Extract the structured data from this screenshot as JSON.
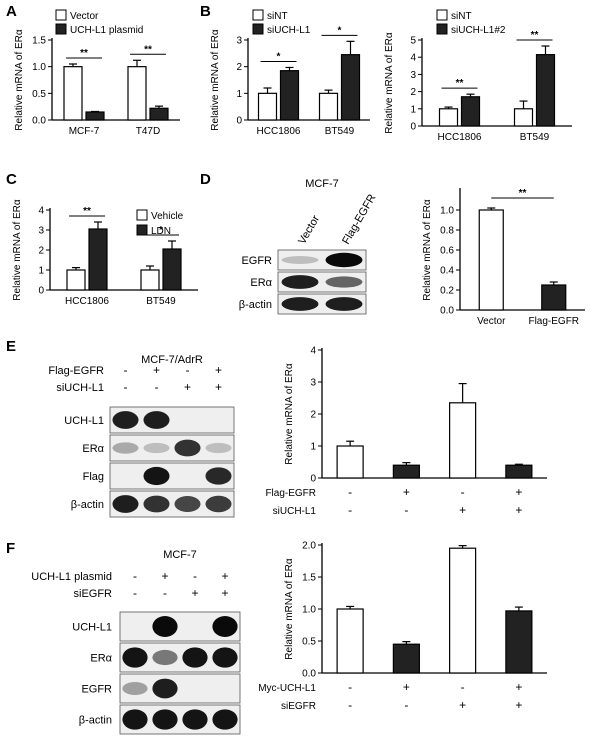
{
  "panel_labels": {
    "a": "A",
    "b": "B",
    "c": "C",
    "d": "D",
    "e": "E",
    "f": "F"
  },
  "ylabel_mrna": "Relative mRNA of ERα",
  "colors": {
    "open": "#ffffff",
    "filled": "#222222",
    "axis": "#000000"
  },
  "chart_data": [
    {
      "id": "A",
      "type": "bar",
      "categories": [
        "MCF-7",
        "T47D"
      ],
      "series": [
        {
          "name": "Vector",
          "values": [
            1.0,
            1.0
          ],
          "err": [
            0.05,
            0.12
          ]
        },
        {
          "name": "UCH-L1 plasmid",
          "values": [
            0.15,
            0.22
          ],
          "err": [
            0.01,
            0.04
          ]
        }
      ],
      "ylim": [
        0,
        1.5
      ],
      "yticks": [
        "0.0",
        "0.5",
        "1.0",
        "1.5"
      ],
      "ytick_vals": [
        0,
        0.5,
        1.0,
        1.5
      ],
      "ylabel": "Relative mRNA of ERα",
      "sig": [
        "**",
        "**"
      ]
    },
    {
      "id": "B1",
      "type": "bar",
      "categories": [
        "HCC1806",
        "BT549"
      ],
      "series": [
        {
          "name": "siNT",
          "values": [
            1.0,
            1.0
          ],
          "err": [
            0.2,
            0.12
          ]
        },
        {
          "name": "siUCH-L1",
          "values": [
            1.85,
            2.45
          ],
          "err": [
            0.12,
            0.5
          ]
        }
      ],
      "ylim": [
        0,
        3
      ],
      "yticks": [
        "0",
        "1",
        "2",
        "3"
      ],
      "ytick_vals": [
        0,
        1,
        2,
        3
      ],
      "ylabel": "Relative mRNA of ERα",
      "sig": [
        "*",
        "*"
      ]
    },
    {
      "id": "B2",
      "type": "bar",
      "categories": [
        "HCC1806",
        "BT549"
      ],
      "series": [
        {
          "name": "siNT",
          "values": [
            1.0,
            1.0
          ],
          "err": [
            0.1,
            0.45
          ]
        },
        {
          "name": "siUCH-L1#2",
          "values": [
            1.7,
            4.15
          ],
          "err": [
            0.15,
            0.5
          ]
        }
      ],
      "ylim": [
        0,
        5
      ],
      "yticks": [
        "0",
        "1",
        "2",
        "3",
        "4",
        "5"
      ],
      "ytick_vals": [
        0,
        1,
        2,
        3,
        4,
        5
      ],
      "ylabel": "Relative mRNA of ERα",
      "sig": [
        "**",
        "**"
      ]
    },
    {
      "id": "C",
      "type": "bar",
      "categories": [
        "HCC1806",
        "BT549"
      ],
      "series": [
        {
          "name": "Vehicle",
          "values": [
            1.0,
            1.0
          ],
          "err": [
            0.12,
            0.2
          ]
        },
        {
          "name": "LDN",
          "values": [
            3.05,
            2.05
          ],
          "err": [
            0.35,
            0.4
          ]
        }
      ],
      "ylim": [
        0,
        4
      ],
      "yticks": [
        "0",
        "1",
        "2",
        "3",
        "4"
      ],
      "ytick_vals": [
        0,
        1,
        2,
        3,
        4
      ],
      "ylabel": "Relative mRNA of ERα",
      "sig": [
        "**",
        "*"
      ]
    },
    {
      "id": "D",
      "type": "bar",
      "categories": [
        "Vector",
        "Flag-EGFR"
      ],
      "values": [
        1.0,
        0.25
      ],
      "err": [
        0.02,
        0.03
      ],
      "fills": [
        "open",
        "filled"
      ],
      "ylim": [
        0,
        1.2
      ],
      "yticks": [
        "0.0",
        "0.2",
        "0.4",
        "0.6",
        "0.8",
        "1.0"
      ],
      "ytick_vals": [
        0,
        0.2,
        0.4,
        0.6,
        0.8,
        1.0
      ],
      "ylabel": "Relative mRNA of ERα",
      "sig": [
        "**"
      ]
    },
    {
      "id": "E",
      "type": "bar",
      "categories": [
        "1",
        "2",
        "3",
        "4"
      ],
      "values": [
        1.0,
        0.4,
        2.35,
        0.4
      ],
      "err": [
        0.15,
        0.08,
        0.6,
        0.03
      ],
      "fills": [
        "open",
        "filled",
        "open",
        "filled"
      ],
      "ylim": [
        0,
        4
      ],
      "yticks": [
        "0",
        "1",
        "2",
        "3",
        "4"
      ],
      "ytick_vals": [
        0,
        1,
        2,
        3,
        4
      ],
      "ylabel": "Relative mRNA of ERα",
      "conditions": [
        {
          "name": "Flag-EGFR",
          "signs": [
            "-",
            "+",
            "-",
            "+"
          ]
        },
        {
          "name": "siUCH-L1",
          "signs": [
            "-",
            "-",
            "+",
            "+"
          ]
        }
      ]
    },
    {
      "id": "F",
      "type": "bar",
      "categories": [
        "1",
        "2",
        "3",
        "4"
      ],
      "values": [
        1.0,
        0.45,
        1.95,
        0.97
      ],
      "err": [
        0.04,
        0.04,
        0.04,
        0.06
      ],
      "fills": [
        "open",
        "filled",
        "open",
        "filled"
      ],
      "ylim": [
        0,
        2.0
      ],
      "yticks": [
        "0.0",
        "0.5",
        "1.0",
        "1.5",
        "2.0"
      ],
      "ytick_vals": [
        0,
        0.5,
        1.0,
        1.5,
        2.0
      ],
      "ylabel": "Relative mRNA of ERα",
      "conditions": [
        {
          "name": "Myc-UCH-L1",
          "signs": [
            "-",
            "+",
            "-",
            "+"
          ]
        },
        {
          "name": "siEGFR",
          "signs": [
            "-",
            "-",
            "+",
            "+"
          ]
        }
      ]
    }
  ],
  "blots": {
    "D": {
      "title": "MCF-7",
      "lanes": [
        "Vector",
        "Flag-EGFR"
      ],
      "rows": [
        {
          "label": "EGFR",
          "bands": [
            0.1,
            1.0
          ]
        },
        {
          "label": "ERα",
          "bands": [
            0.9,
            0.55
          ]
        },
        {
          "label": "β-actin",
          "bands": [
            0.9,
            0.9
          ]
        }
      ]
    },
    "E": {
      "title": "MCF-7/AdrR",
      "conditions": [
        {
          "name": "Flag-EGFR",
          "signs": [
            "-",
            "+",
            "-",
            "+"
          ]
        },
        {
          "name": "siUCH-L1",
          "signs": [
            "-",
            "-",
            "+",
            "+"
          ]
        }
      ],
      "rows": [
        {
          "label": "UCH-L1",
          "bands": [
            0.9,
            0.9,
            0.05,
            0.05
          ]
        },
        {
          "label": "ERα",
          "bands": [
            0.2,
            0.1,
            0.8,
            0.1
          ]
        },
        {
          "label": "Flag",
          "bands": [
            0.05,
            0.95,
            0.05,
            0.85
          ]
        },
        {
          "label": "β-actin",
          "bands": [
            0.9,
            0.8,
            0.7,
            0.75
          ]
        }
      ]
    },
    "F": {
      "title": "MCF-7",
      "conditions": [
        {
          "name": "UCH-L1 plasmid",
          "signs": [
            "-",
            "+",
            "-",
            "+"
          ]
        },
        {
          "name": "siEGFR",
          "signs": [
            "-",
            "-",
            "+",
            "+"
          ]
        }
      ],
      "rows": [
        {
          "label": "UCH-L1",
          "bands": [
            0.05,
            1.0,
            0.05,
            1.0
          ]
        },
        {
          "label": "ERα",
          "bands": [
            0.95,
            0.45,
            0.95,
            0.95
          ]
        },
        {
          "label": "EGFR",
          "bands": [
            0.25,
            0.9,
            0.05,
            0.05
          ]
        },
        {
          "label": "β-actin",
          "bands": [
            0.95,
            0.95,
            0.95,
            0.95
          ]
        }
      ]
    }
  }
}
